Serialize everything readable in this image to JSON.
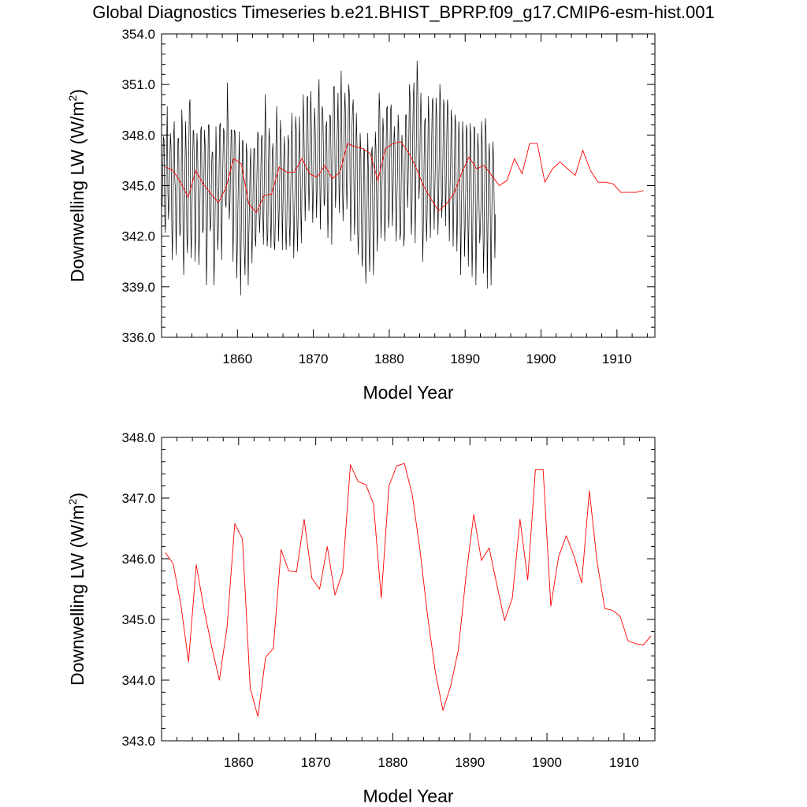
{
  "title": "Global Diagnostics Timeseries b.e21.BHIST_BPRP.f09_g17.CMIP6-esm-hist.001",
  "colors": {
    "monthly": "#000000",
    "annual": "#ff0000",
    "axis": "#000000"
  },
  "chart_data": [
    {
      "type": "line",
      "xlabel": "Model Year",
      "ylabel": "Downwelling LW (W/m",
      "ylabel_superscript": "2",
      "ylabel_close": ")",
      "xlim": [
        1850,
        1915
      ],
      "ylim": [
        336.0,
        354.0
      ],
      "x_ticks": [
        "1860",
        "1870",
        "1880",
        "1890",
        "1900",
        "1910"
      ],
      "y_ticks": [
        "336.0",
        "339.0",
        "342.0",
        "345.0",
        "348.0",
        "351.0",
        "354.0"
      ],
      "series": [
        {
          "kind": "monthly",
          "x_start": 1850.0,
          "x_step": 0.083333,
          "values": [
            344.0,
            343.8,
            345.9,
            347.9,
            347.7,
            343.2,
            342.2,
            344.0,
            347.4,
            349.7,
            344.7,
            343.0,
            344.1,
            346.4,
            348.1,
            347.3,
            343.2,
            340.6,
            343.1,
            347.7,
            348.8,
            345.3,
            344.7,
            340.9,
            343.4,
            345.7,
            347.8,
            347.8,
            343.3,
            342.0,
            342.4,
            345.4,
            349.5,
            348.3,
            342.0,
            339.7,
            342.6,
            346.1,
            348.8,
            346.8,
            342.0,
            341.0,
            343.4,
            347.0,
            349.8,
            350.1,
            342.6,
            340.7,
            343.1,
            346.0,
            348.3,
            348.1,
            345.4,
            340.5,
            342.5,
            346.0,
            348.1,
            347.0,
            344.2,
            340.3,
            342.1,
            344.9,
            348.3,
            348.5,
            344.7,
            342.2,
            342.4,
            345.6,
            348.3,
            347.3,
            344.0,
            339.1,
            341.3,
            345.2,
            348.6,
            348.6,
            343.5,
            342.3,
            342.7,
            346.0,
            347.0,
            346.9,
            341.6,
            339.1,
            341.6,
            344.3,
            348.5,
            346.3,
            342.9,
            341.2,
            342.7,
            346.2,
            348.6,
            348.7,
            343.2,
            340.6,
            344.0,
            346.4,
            348.4,
            348.2,
            346.3,
            344.0,
            343.7,
            345.9,
            351.1,
            348.9,
            346.6,
            343.0,
            343.8,
            345.7,
            348.3,
            348.3,
            343.8,
            340.5,
            343.5,
            348.3,
            348.2,
            347.4,
            342.8,
            339.5,
            341.9,
            344.4,
            346.2,
            348.2,
            342.1,
            338.5,
            342.2,
            345.0,
            347.7,
            347.6,
            342.2,
            340.9,
            339.7,
            343.5,
            347.5,
            346.9,
            343.2,
            339.1,
            342.0,
            343.9,
            346.2,
            347.2,
            342.7,
            340.4,
            343.0,
            345.4,
            347.2,
            347.2,
            341.9,
            341.4,
            344.1,
            346.0,
            348.2,
            348.0,
            343.6,
            342.2,
            343.5,
            346.1,
            347.8,
            348.0,
            343.6,
            341.5,
            343.9,
            346.9,
            350.4,
            348.2,
            343.8,
            341.4,
            342.1,
            346.3,
            348.4,
            347.5,
            343.4,
            341.3,
            343.5,
            346.8,
            347.5,
            346.5,
            341.6,
            341.2,
            343.2,
            347.6,
            349.7,
            347.4,
            344.6,
            341.7,
            343.6,
            345.8,
            348.9,
            347.9,
            345.1,
            341.2,
            343.8,
            346.2,
            347.9,
            346.6,
            342.4,
            341.2,
            342.6,
            345.7,
            348.0,
            347.6,
            342.7,
            341.4,
            344.1,
            346.4,
            349.3,
            347.0,
            344.0,
            340.7,
            342.8,
            344.8,
            349.1,
            348.3,
            342.9,
            341.1,
            343.3,
            346.6,
            349.1,
            346.7,
            343.8,
            341.6,
            344.8,
            346.3,
            350.4,
            348.6,
            346.1,
            342.9,
            344.8,
            347.6,
            350.2,
            350.3,
            346.4,
            343.5,
            345.1,
            348.9,
            350.6,
            348.4,
            345.3,
            342.8,
            344.6,
            347.7,
            349.6,
            348.3,
            346.0,
            343.1,
            344.8,
            347.2,
            350.0,
            351.3,
            346.3,
            342.4,
            344.7,
            347.7,
            349.7,
            349.4,
            346.9,
            343.8,
            344.1,
            346.7,
            348.5,
            348.8,
            344.6,
            341.9,
            344.4,
            347.3,
            349.2,
            349.1,
            346.5,
            341.5,
            344.8,
            347.9,
            350.8,
            350.9,
            347.2,
            343.7,
            344.8,
            346.9,
            348.6,
            350.5,
            346.2,
            343.4,
            345.3,
            349.4,
            351.8,
            348.0,
            345.0,
            342.9,
            344.8,
            349.3,
            350.5,
            348.7,
            345.8,
            343.6,
            345.4,
            348.6,
            351.0,
            350.4,
            345.4,
            341.7,
            343.8,
            348.3,
            349.6,
            350.1,
            345.5,
            342.1,
            343.6,
            346.5,
            349.3,
            347.4,
            342.4,
            340.9,
            342.4,
            344.5,
            348.1,
            347.0,
            343.4,
            340.2,
            340.9,
            344.3,
            347.2,
            347.0,
            341.2,
            339.2,
            341.4,
            344.0,
            348.1,
            345.8,
            341.8,
            339.9,
            341.6,
            344.9,
            347.0,
            347.3,
            343.2,
            339.7,
            341.8,
            345.7,
            348.2,
            347.2,
            344.2,
            341.1,
            342.6,
            346.7,
            350.5,
            349.6,
            344.8,
            341.9,
            344.0,
            345.9,
            349.0,
            348.2,
            344.3,
            341.7,
            343.3,
            347.1,
            349.6,
            349.7,
            345.2,
            342.5,
            343.4,
            346.6,
            349.5,
            349.8,
            345.4,
            342.6,
            344.5,
            347.3,
            348.5,
            347.4,
            343.8,
            341.7,
            343.9,
            345.9,
            349.2,
            348.3,
            343.9,
            341.8,
            342.2,
            345.6,
            348.0,
            347.2,
            344.4,
            341.4,
            342.1,
            346.5,
            349.2,
            349.2,
            346.5,
            343.7,
            345.4,
            347.9,
            351.0,
            350.2,
            343.9,
            342.1,
            343.9,
            347.7,
            350.3,
            351.1,
            345.6,
            341.6,
            345.2,
            348.3,
            352.4,
            351.1,
            347.2,
            344.2,
            345.2,
            348.5,
            350.5,
            348.6,
            343.7,
            340.5,
            342.9,
            346.3,
            348.8,
            349.0,
            343.5,
            341.7,
            343.5,
            347.1,
            350.3,
            348.4,
            344.6,
            341.9,
            344.4,
            347.6,
            350.0,
            350.2,
            344.9,
            342.4,
            344.6,
            346.5,
            350.2,
            349.2,
            345.8,
            342.1,
            344.0,
            346.8,
            351.0,
            350.1,
            345.8,
            343.1,
            344.3,
            347.2,
            350.1,
            349.7,
            346.8,
            342.6,
            345.1,
            348.0,
            350.1,
            349.6,
            344.9,
            341.7,
            344.7,
            346.2,
            349.5,
            348.8,
            344.8,
            341.4,
            343.9,
            345.9,
            349.2,
            348.7,
            344.0,
            341.1,
            343.5,
            346.8,
            348.8,
            347.7,
            343.5,
            339.7,
            343.2,
            345.7,
            348.8,
            347.5,
            344.7,
            340.8,
            342.6,
            344.7,
            348.6,
            348.2,
            344.3,
            340.2,
            342.8,
            345.4,
            348.7,
            347.8,
            343.1,
            339.6,
            342.0,
            345.7,
            348.5,
            348.4,
            344.9,
            339.1,
            342.2,
            345.1,
            348.1,
            347.0,
            343.6,
            341.6,
            342.3,
            343.9,
            348.8,
            347.5,
            343.3,
            339.8,
            341.7,
            345.5,
            349.0,
            348.2,
            344.9,
            338.9,
            342.3,
            346.2,
            347.5,
            346.3,
            342.1,
            339.1,
            342.8,
            345.6,
            347.6,
            346.4,
            343.6,
            340.7,
            343.3
          ]
        },
        {
          "kind": "annual",
          "x": [
            1850.5,
            1851.5,
            1852.5,
            1853.5,
            1854.5,
            1855.5,
            1856.5,
            1857.5,
            1858.5,
            1859.5,
            1860.5,
            1861.5,
            1862.5,
            1863.5,
            1864.5,
            1865.5,
            1866.5,
            1867.5,
            1868.5,
            1869.5,
            1870.5,
            1871.5,
            1872.5,
            1873.5,
            1874.5,
            1875.5,
            1876.5,
            1877.5,
            1878.5,
            1879.5,
            1880.5,
            1881.5,
            1882.5,
            1883.5,
            1884.5,
            1885.5,
            1886.5,
            1887.5,
            1888.5,
            1889.5,
            1890.5,
            1891.5,
            1892.5,
            1893.5,
            1894.5,
            1895.5,
            1896.5,
            1897.5,
            1898.5,
            1899.5,
            1900.5,
            1901.5,
            1902.5,
            1903.5,
            1904.5,
            1905.5,
            1906.5,
            1907.5,
            1908.5,
            1909.5,
            1910.5,
            1911.5,
            1912.5,
            1913.5
          ],
          "values": [
            346.1,
            345.9,
            345.2,
            344.3,
            345.9,
            345.1,
            344.5,
            344.0,
            344.9,
            346.6,
            346.3,
            343.9,
            343.4,
            344.4,
            344.5,
            346.1,
            345.8,
            345.8,
            346.6,
            345.7,
            345.5,
            346.2,
            345.4,
            345.8,
            347.5,
            347.3,
            347.2,
            346.9,
            345.3,
            347.2,
            347.5,
            347.6,
            347.0,
            346.1,
            345.0,
            344.2,
            343.5,
            343.9,
            344.5,
            345.7,
            346.7,
            346.0,
            346.2,
            345.6,
            345.0,
            345.3,
            346.6,
            345.7,
            347.5,
            347.5,
            345.2,
            346.0,
            346.4,
            346.0,
            345.6,
            347.1,
            345.9,
            345.2,
            345.2,
            345.1,
            344.6,
            344.6,
            344.6,
            344.7
          ]
        }
      ]
    },
    {
      "type": "line",
      "xlabel": "Model Year",
      "ylabel": "Downwelling LW (W/m",
      "ylabel_superscript": "2",
      "ylabel_close": ")",
      "xlim": [
        1850,
        1914
      ],
      "ylim": [
        343.0,
        348.0
      ],
      "x_ticks": [
        "1860",
        "1870",
        "1880",
        "1890",
        "1900",
        "1910"
      ],
      "y_ticks": [
        "343.0",
        "344.0",
        "345.0",
        "346.0",
        "347.0",
        "348.0"
      ],
      "series": [
        {
          "kind": "annual",
          "x": [
            1850.5,
            1851.5,
            1852.5,
            1853.5,
            1854.5,
            1855.5,
            1856.5,
            1857.5,
            1858.5,
            1859.5,
            1860.5,
            1861.5,
            1862.5,
            1863.5,
            1864.5,
            1865.5,
            1866.5,
            1867.5,
            1868.5,
            1869.5,
            1870.5,
            1871.5,
            1872.5,
            1873.5,
            1874.5,
            1875.5,
            1876.5,
            1877.5,
            1878.5,
            1879.5,
            1880.5,
            1881.5,
            1882.5,
            1883.5,
            1884.5,
            1885.5,
            1886.5,
            1887.5,
            1888.5,
            1889.5,
            1890.5,
            1891.5,
            1892.5,
            1893.5,
            1894.5,
            1895.5,
            1896.5,
            1897.5,
            1898.5,
            1899.5,
            1900.5,
            1901.5,
            1902.5,
            1903.5,
            1904.5,
            1905.5,
            1906.5,
            1907.5,
            1908.5,
            1909.5,
            1910.5,
            1911.5,
            1912.5,
            1913.5
          ],
          "values": [
            346.1,
            345.92,
            345.25,
            344.3,
            345.9,
            345.18,
            344.55,
            344.0,
            344.88,
            346.58,
            346.32,
            343.87,
            343.4,
            344.38,
            344.52,
            346.15,
            345.8,
            345.78,
            346.65,
            345.68,
            345.5,
            346.2,
            345.4,
            345.78,
            347.55,
            347.27,
            347.22,
            346.9,
            345.35,
            347.2,
            347.53,
            347.57,
            347.07,
            346.17,
            345.07,
            344.15,
            343.5,
            343.9,
            344.5,
            345.72,
            346.73,
            345.97,
            346.18,
            345.57,
            344.98,
            345.35,
            346.65,
            345.65,
            347.47,
            347.47,
            345.22,
            346.03,
            346.38,
            346.05,
            345.6,
            347.12,
            345.95,
            345.18,
            345.15,
            345.05,
            344.65,
            344.6,
            344.58,
            344.73
          ]
        }
      ]
    }
  ]
}
